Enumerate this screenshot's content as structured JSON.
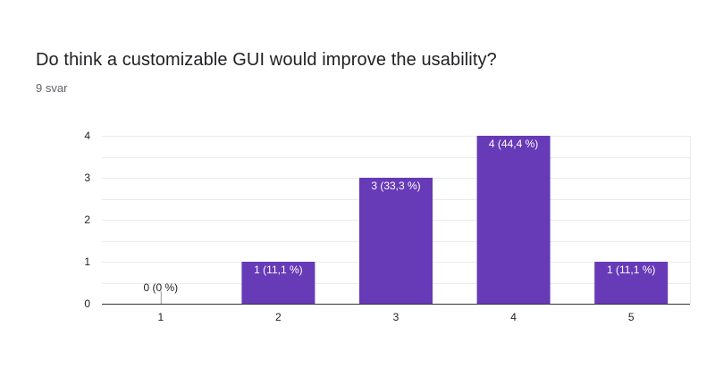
{
  "header": {
    "question": "Do think a customizable GUI would improve the usability?",
    "response_count": "9 svar"
  },
  "colors": {
    "bar": "#673ab7",
    "grid": "#ebebeb",
    "axis": "#333333",
    "label_inside": "#ffffff",
    "label_outside": "#222222"
  },
  "chart_data": {
    "type": "bar",
    "categories": [
      "1",
      "2",
      "3",
      "4",
      "5"
    ],
    "values": [
      0,
      1,
      3,
      4,
      1
    ],
    "data_labels": [
      "0 (0 %)",
      "1 (11,1 %)",
      "3 (33,3 %)",
      "4 (44,4 %)",
      "1 (11,1 %)"
    ],
    "y_ticks": [
      "0",
      "1",
      "2",
      "3",
      "4"
    ],
    "ylim": [
      0,
      4
    ],
    "grid": true,
    "legend": "none"
  }
}
